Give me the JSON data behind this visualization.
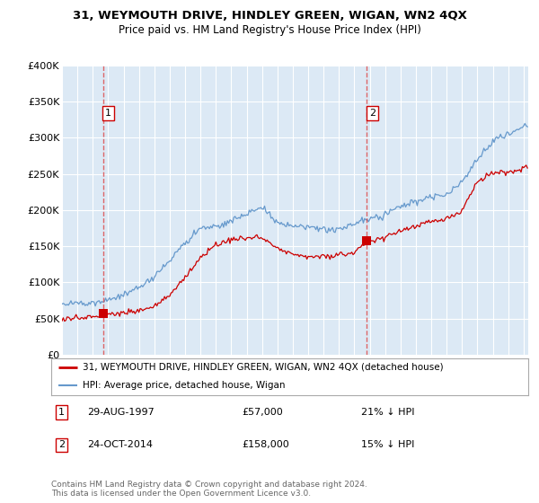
{
  "title": "31, WEYMOUTH DRIVE, HINDLEY GREEN, WIGAN, WN2 4QX",
  "subtitle": "Price paid vs. HM Land Registry's House Price Index (HPI)",
  "bg_color": "#dce9f5",
  "grid_color": "#ffffff",
  "ylim": [
    0,
    400000
  ],
  "yticks": [
    0,
    50000,
    100000,
    150000,
    200000,
    250000,
    300000,
    350000,
    400000
  ],
  "ytick_labels": [
    "£0",
    "£50K",
    "£100K",
    "£150K",
    "£200K",
    "£250K",
    "£300K",
    "£350K",
    "£400K"
  ],
  "xlim_start": 1995.0,
  "xlim_end": 2025.3,
  "sale1_x": 1997.66,
  "sale1_y": 57000,
  "sale1_date": "29-AUG-1997",
  "sale1_price": "£57,000",
  "sale1_hpi": "21% ↓ HPI",
  "sale2_x": 2014.81,
  "sale2_y": 158000,
  "sale2_date": "24-OCT-2014",
  "sale2_price": "£158,000",
  "sale2_hpi": "15% ↓ HPI",
  "red_color": "#cc0000",
  "blue_color": "#6699cc",
  "legend_entry1": "31, WEYMOUTH DRIVE, HINDLEY GREEN, WIGAN, WN2 4QX (detached house)",
  "legend_entry2": "HPI: Average price, detached house, Wigan",
  "footer": "Contains HM Land Registry data © Crown copyright and database right 2024.\nThis data is licensed under the Open Government Licence v3.0."
}
